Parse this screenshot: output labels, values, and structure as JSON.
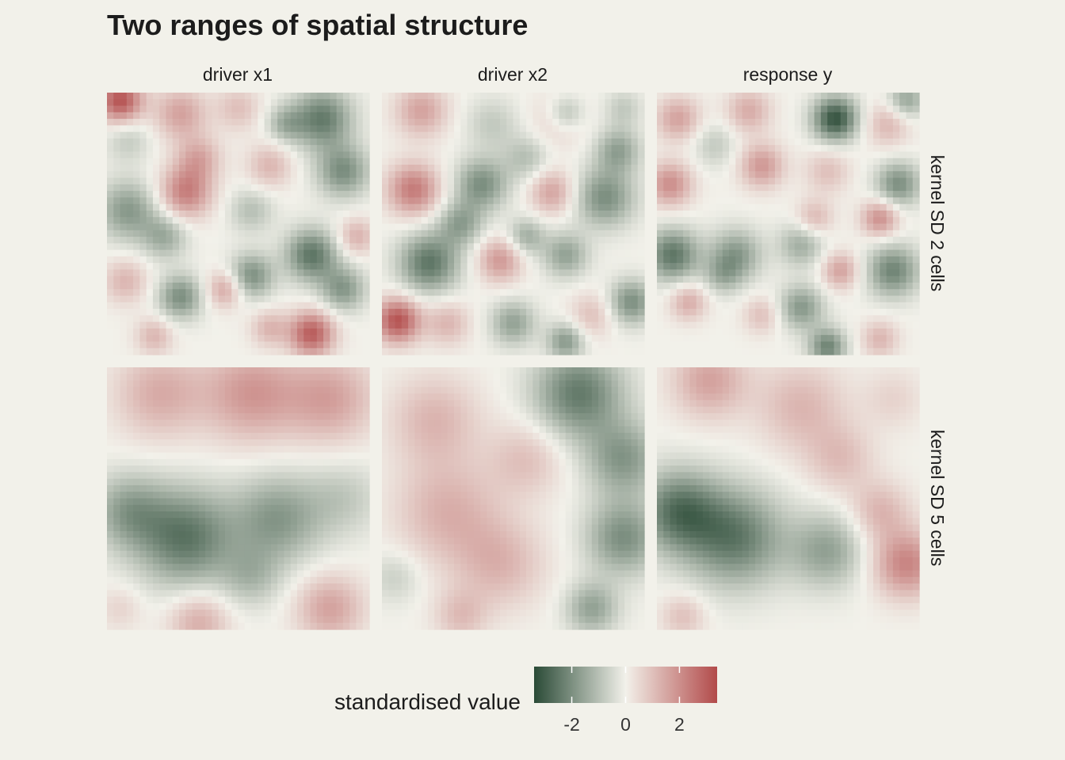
{
  "chart_data": {
    "type": "heatmap",
    "title": "Two ranges of spatial structure",
    "grid_size": 40,
    "columns": [
      "driver x1",
      "driver x2",
      "response y"
    ],
    "rows": [
      "kernel SD 2 cells",
      "kernel SD 5 cells"
    ],
    "legend": {
      "title": "standardised value",
      "placement": "bottom",
      "ticks": [
        -2,
        0,
        2
      ],
      "range": [
        -3.4,
        3.4
      ]
    },
    "colors": {
      "low": "#2a4a36",
      "mid": "#f2f1ea",
      "high": "#b24a4a",
      "background": "#f2f1ea"
    },
    "panels": [
      {
        "row": "kernel SD 2 cells",
        "column": "driver x1",
        "blobs": [
          [
            0.05,
            0.03,
            3.2,
            0.06
          ],
          [
            0.28,
            0.08,
            1.6,
            0.07
          ],
          [
            0.5,
            0.06,
            1.0,
            0.06
          ],
          [
            0.82,
            0.1,
            -2.4,
            0.08
          ],
          [
            0.9,
            0.3,
            -2.0,
            0.07
          ],
          [
            0.08,
            0.18,
            -0.8,
            0.06
          ],
          [
            0.35,
            0.25,
            1.4,
            0.06
          ],
          [
            0.62,
            0.28,
            1.2,
            0.06
          ],
          [
            0.3,
            0.38,
            2.3,
            0.07
          ],
          [
            0.08,
            0.45,
            -1.8,
            0.08
          ],
          [
            0.22,
            0.55,
            -1.4,
            0.06
          ],
          [
            0.55,
            0.45,
            -1.0,
            0.06
          ],
          [
            0.78,
            0.62,
            -2.5,
            0.07
          ],
          [
            0.9,
            0.75,
            -1.8,
            0.06
          ],
          [
            0.55,
            0.7,
            -2.0,
            0.06
          ],
          [
            0.28,
            0.78,
            -2.0,
            0.06
          ],
          [
            0.45,
            0.75,
            1.6,
            0.05
          ],
          [
            0.07,
            0.72,
            1.2,
            0.06
          ],
          [
            0.18,
            0.93,
            1.2,
            0.05
          ],
          [
            0.78,
            0.92,
            3.0,
            0.06
          ],
          [
            0.62,
            0.9,
            1.2,
            0.05
          ],
          [
            0.95,
            0.55,
            1.3,
            0.05
          ],
          [
            0.68,
            0.12,
            -1.2,
            0.05
          ]
        ]
      },
      {
        "row": "kernel SD 2 cells",
        "column": "driver x2",
        "blobs": [
          [
            0.15,
            0.07,
            1.6,
            0.07
          ],
          [
            0.42,
            0.12,
            -0.8,
            0.07
          ],
          [
            0.68,
            0.1,
            1.0,
            0.07
          ],
          [
            0.7,
            0.08,
            -1.6,
            0.05
          ],
          [
            0.92,
            0.06,
            -0.8,
            0.05
          ],
          [
            0.38,
            0.35,
            -2.0,
            0.07
          ],
          [
            0.55,
            0.25,
            -1.0,
            0.06
          ],
          [
            0.12,
            0.37,
            2.4,
            0.07
          ],
          [
            0.65,
            0.38,
            1.6,
            0.06
          ],
          [
            0.85,
            0.4,
            -2.0,
            0.08
          ],
          [
            0.9,
            0.22,
            -1.6,
            0.06
          ],
          [
            0.18,
            0.65,
            -2.5,
            0.08
          ],
          [
            0.45,
            0.64,
            1.8,
            0.06
          ],
          [
            0.7,
            0.62,
            -1.6,
            0.06
          ],
          [
            0.55,
            0.55,
            -1.4,
            0.05
          ],
          [
            0.06,
            0.87,
            3.2,
            0.06
          ],
          [
            0.25,
            0.88,
            1.2,
            0.06
          ],
          [
            0.5,
            0.88,
            -1.6,
            0.06
          ],
          [
            0.8,
            0.85,
            1.0,
            0.06
          ],
          [
            0.95,
            0.8,
            -2.0,
            0.06
          ],
          [
            0.7,
            0.95,
            -1.8,
            0.05
          ],
          [
            0.3,
            0.5,
            -1.6,
            0.06
          ]
        ]
      },
      {
        "row": "kernel SD 2 cells",
        "column": "response y",
        "blobs": [
          [
            0.08,
            0.1,
            1.6,
            0.06
          ],
          [
            0.35,
            0.07,
            1.4,
            0.06
          ],
          [
            0.68,
            0.1,
            -3.2,
            0.06
          ],
          [
            0.88,
            0.12,
            1.2,
            0.06
          ],
          [
            0.95,
            0.03,
            -1.6,
            0.05
          ],
          [
            0.22,
            0.2,
            -0.8,
            0.06
          ],
          [
            0.4,
            0.28,
            1.8,
            0.06
          ],
          [
            0.05,
            0.35,
            2.0,
            0.06
          ],
          [
            0.65,
            0.3,
            1.0,
            0.06
          ],
          [
            0.92,
            0.35,
            -2.0,
            0.06
          ],
          [
            0.85,
            0.48,
            2.0,
            0.05
          ],
          [
            0.6,
            0.48,
            1.2,
            0.05
          ],
          [
            0.06,
            0.62,
            -2.5,
            0.07
          ],
          [
            0.3,
            0.62,
            -1.8,
            0.07
          ],
          [
            0.55,
            0.58,
            -1.4,
            0.06
          ],
          [
            0.7,
            0.68,
            1.6,
            0.05
          ],
          [
            0.9,
            0.68,
            -2.2,
            0.07
          ],
          [
            0.12,
            0.8,
            1.4,
            0.05
          ],
          [
            0.4,
            0.85,
            1.0,
            0.05
          ],
          [
            0.55,
            0.82,
            -1.8,
            0.06
          ],
          [
            0.65,
            0.97,
            -2.2,
            0.05
          ],
          [
            0.85,
            0.94,
            1.2,
            0.05
          ],
          [
            0.25,
            0.7,
            -1.0,
            0.05
          ]
        ]
      },
      {
        "row": "kernel SD 5 cells",
        "column": "driver x1",
        "blobs": [
          [
            0.2,
            0.1,
            1.4,
            0.12
          ],
          [
            0.55,
            0.1,
            1.8,
            0.13
          ],
          [
            0.85,
            0.12,
            1.6,
            0.12
          ],
          [
            0.08,
            0.55,
            -1.6,
            0.1
          ],
          [
            0.3,
            0.65,
            -2.5,
            0.13
          ],
          [
            0.65,
            0.58,
            -1.8,
            0.12
          ],
          [
            0.9,
            0.5,
            -0.8,
            0.1
          ],
          [
            0.85,
            0.92,
            1.6,
            0.09
          ],
          [
            0.35,
            0.97,
            1.4,
            0.08
          ],
          [
            0.05,
            0.92,
            0.6,
            0.06
          ],
          [
            0.55,
            0.8,
            -1.0,
            0.08
          ]
        ]
      },
      {
        "row": "kernel SD 5 cells",
        "column": "driver x2",
        "blobs": [
          [
            0.75,
            0.1,
            -2.4,
            0.12
          ],
          [
            0.92,
            0.35,
            -1.8,
            0.1
          ],
          [
            0.92,
            0.65,
            -2.0,
            0.1
          ],
          [
            0.2,
            0.2,
            1.2,
            0.12
          ],
          [
            0.25,
            0.55,
            1.3,
            0.14
          ],
          [
            0.45,
            0.75,
            1.2,
            0.12
          ],
          [
            0.55,
            0.35,
            1.0,
            0.1
          ],
          [
            0.05,
            0.8,
            -0.7,
            0.07
          ],
          [
            0.8,
            0.92,
            -1.6,
            0.07
          ],
          [
            0.3,
            0.95,
            1.0,
            0.07
          ]
        ]
      },
      {
        "row": "kernel SD 5 cells",
        "column": "response y",
        "blobs": [
          [
            0.2,
            0.05,
            1.6,
            0.1
          ],
          [
            0.55,
            0.15,
            1.2,
            0.12
          ],
          [
            0.9,
            0.12,
            0.6,
            0.08
          ],
          [
            0.08,
            0.55,
            -2.5,
            0.11
          ],
          [
            0.3,
            0.65,
            -2.4,
            0.13
          ],
          [
            0.65,
            0.7,
            -1.6,
            0.1
          ],
          [
            0.95,
            0.75,
            2.2,
            0.09
          ],
          [
            0.85,
            0.55,
            1.2,
            0.08
          ],
          [
            0.7,
            0.35,
            1.0,
            0.09
          ],
          [
            0.1,
            0.95,
            1.0,
            0.06
          ]
        ]
      }
    ]
  }
}
